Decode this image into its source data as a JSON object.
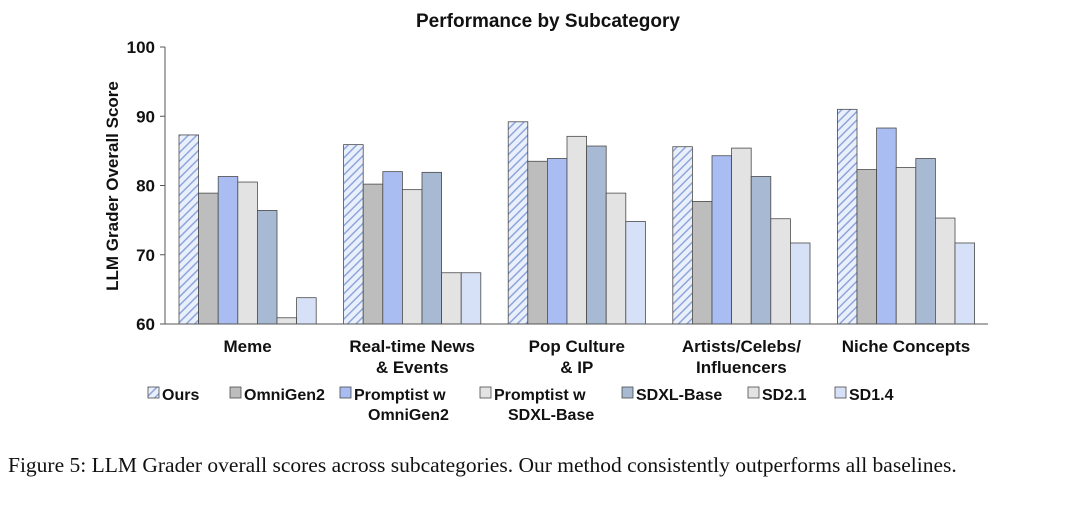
{
  "chart_data": {
    "type": "bar",
    "title": "Performance by Subcategory",
    "xlabel": "",
    "ylabel": "LLM Grader Overall Score",
    "ylim": [
      60,
      100
    ],
    "yticks": [
      60,
      70,
      80,
      90,
      100
    ],
    "legend_position": "bottom",
    "categories": [
      [
        "Meme"
      ],
      [
        "Real-time News",
        "& Events"
      ],
      [
        "Pop Culture",
        "& IP"
      ],
      [
        "Artists/Celebs/",
        "Influencers"
      ],
      [
        "Niche Concepts"
      ]
    ],
    "series": [
      {
        "name": [
          "Ours"
        ],
        "values": [
          87.3,
          85.9,
          89.2,
          85.6,
          91.0
        ],
        "color": "#a9bde9",
        "pattern": "hatch"
      },
      {
        "name": [
          "OmniGen2"
        ],
        "values": [
          78.9,
          80.2,
          83.5,
          77.7,
          82.3
        ],
        "color": "#bdbdbd"
      },
      {
        "name": [
          "Promptist w",
          "OmniGen2"
        ],
        "values": [
          81.3,
          82.0,
          83.9,
          84.3,
          88.3
        ],
        "color": "#a9bdf2"
      },
      {
        "name": [
          "Promptist w",
          "SDXL-Base"
        ],
        "values": [
          80.5,
          79.4,
          87.1,
          85.4,
          82.6
        ],
        "color": "#e3e3e3"
      },
      {
        "name": [
          "SDXL-Base"
        ],
        "values": [
          76.4,
          81.9,
          85.7,
          81.3,
          83.9
        ],
        "color": "#a8bad3"
      },
      {
        "name": [
          "SD2.1"
        ],
        "values": [
          60.9,
          67.4,
          78.9,
          75.2,
          75.3
        ],
        "color": "#e3e3e3"
      },
      {
        "name": [
          "SD1.4"
        ],
        "values": [
          63.8,
          67.4,
          74.8,
          71.7,
          71.7
        ],
        "color": "#d6e1f7"
      }
    ]
  },
  "caption": "Figure 5: LLM Grader overall scores across subcategories. Our method consistently outperforms all baselines."
}
